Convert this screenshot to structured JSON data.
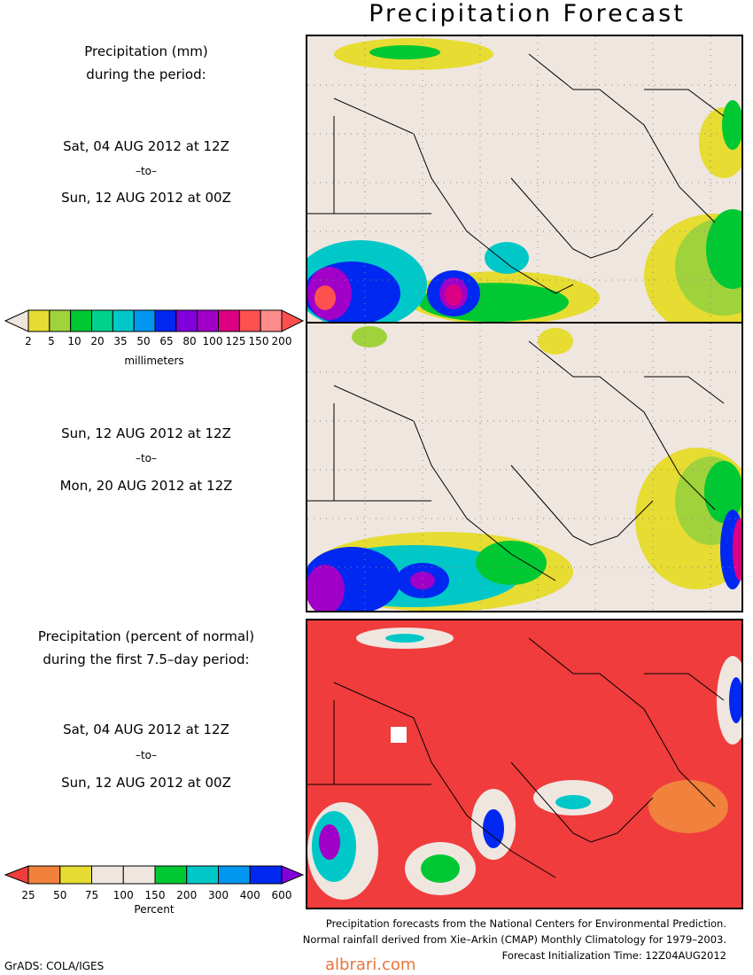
{
  "title": "Precipitation Forecast",
  "panel1": {
    "heading_line1": "Precipitation (mm)",
    "heading_line2": "during the period:",
    "start": "Sat, 04 AUG 2012 at 12Z",
    "to": "–to–",
    "end": "Sun, 12 AUG 2012 at 00Z"
  },
  "panel2": {
    "start": "Sun, 12 AUG 2012 at 12Z",
    "to": "–to–",
    "end": "Mon, 20 AUG 2012 at 12Z"
  },
  "panel3": {
    "heading_line1": "Precipitation (percent of normal)",
    "heading_line2": "during the first 7.5–day period:",
    "start": "Sat, 04 AUG 2012 at 12Z",
    "to": "–to–",
    "end": "Sun, 12 AUG 2012 at 00Z"
  },
  "scale_mm": {
    "labels": [
      "2",
      "5",
      "10",
      "20",
      "35",
      "50",
      "65",
      "80",
      "100",
      "125",
      "150",
      "200"
    ],
    "colors": [
      "#e6dc32",
      "#a0d23c",
      "#00c832",
      "#00d28c",
      "#00c8c8",
      "#0096f0",
      "#0028f0",
      "#8200dc",
      "#a000c8",
      "#dc0082",
      "#ff5050",
      "#ff8c8c"
    ],
    "unit": "millimeters"
  },
  "scale_pct": {
    "labels": [
      "25",
      "50",
      "75",
      "100",
      "150",
      "200",
      "300",
      "400",
      "600"
    ],
    "colors": [
      "#f03c3c",
      "#f0823c",
      "#e6dc32",
      "#efe6e0",
      "#efe6e0",
      "#00c832",
      "#00c8c8",
      "#0096f0",
      "#0028f0",
      "#8200dc"
    ],
    "unit": "Percent"
  },
  "footer": {
    "line1": "Precipitation forecasts from the National Centers for Environmental Prediction.",
    "line2": "Normal rainfall derived from Xie–Arkin (CMAP) Monthly Climatology for 1979–2003.",
    "line3": "Forecast Initialization Time: 12Z04AUG2012"
  },
  "credit": "GrADS: COLA/IGES",
  "watermark": "albrari.com"
}
